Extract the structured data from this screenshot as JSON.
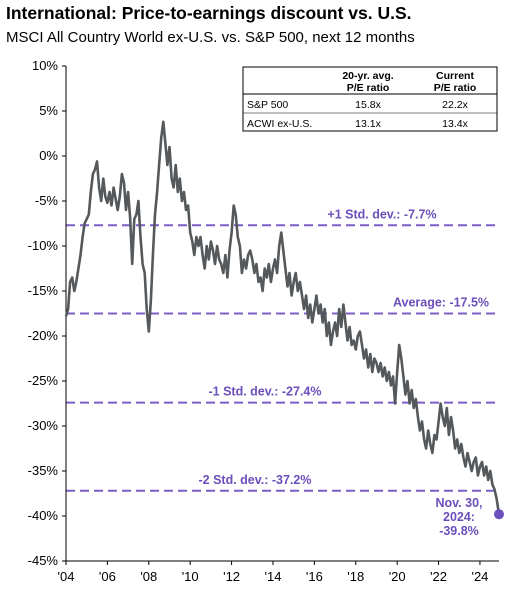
{
  "header": {
    "title": "International: Price-to-earnings discount vs. U.S.",
    "subtitle": "MSCI All Country World ex-U.S. vs. S&P 500, next 12 months"
  },
  "colors": {
    "line": "#55595c",
    "reference": "#7d5cc6",
    "annotation": "#6b4fbb",
    "axis": "#000000"
  },
  "table": {
    "headers": [
      [
        "20-yr. avg.",
        "P/E ratio"
      ],
      [
        "Current",
        "P/E ratio"
      ]
    ],
    "rows": [
      {
        "label": "S&P 500",
        "avg": "15.8x",
        "current": "22.2x"
      },
      {
        "label": "ACWI ex-U.S.",
        "avg": "13.1x",
        "current": "13.4x"
      }
    ]
  },
  "chart_data": {
    "type": "line",
    "ylim": [
      -45,
      10
    ],
    "xlim": [
      2004,
      2024.92
    ],
    "y_ticks": [
      "10%",
      "5%",
      "0%",
      "-5%",
      "-10%",
      "-15%",
      "-20%",
      "-25%",
      "-30%",
      "-35%",
      "-40%",
      "-45%"
    ],
    "x_ticks": [
      {
        "label": "'04",
        "value": 2004
      },
      {
        "label": "'06",
        "value": 2006
      },
      {
        "label": "'08",
        "value": 2008
      },
      {
        "label": "'10",
        "value": 2010
      },
      {
        "label": "'12",
        "value": 2012
      },
      {
        "label": "'14",
        "value": 2014
      },
      {
        "label": "'16",
        "value": 2016
      },
      {
        "label": "'18",
        "value": 2018
      },
      {
        "label": "'20",
        "value": 2020
      },
      {
        "label": "'22",
        "value": 2022
      },
      {
        "label": "'24",
        "value": 2024
      }
    ],
    "reference_lines": [
      {
        "label": "+1 Std. dev.: -7.7%",
        "value": -7.7
      },
      {
        "label": "Average: -17.5%",
        "value": -17.5
      },
      {
        "label": "-1 Std. dev.: -27.4%",
        "value": -27.4
      },
      {
        "label": "-2 Std. dev.: -37.2%",
        "value": -37.2
      }
    ],
    "end_point": {
      "x": 2024.92,
      "y": -39.8,
      "label_lines": [
        "Nov. 30,",
        "2024:",
        "-39.8%"
      ]
    },
    "series": [
      {
        "points": [
          [
            2004.0,
            -17.8
          ],
          [
            2004.1,
            -17.0
          ],
          [
            2004.2,
            -14.0
          ],
          [
            2004.3,
            -13.5
          ],
          [
            2004.4,
            -15.0
          ],
          [
            2004.5,
            -14.0
          ],
          [
            2004.6,
            -12.5
          ],
          [
            2004.7,
            -11.0
          ],
          [
            2004.8,
            -9.0
          ],
          [
            2004.9,
            -7.5
          ],
          [
            2005.0,
            -7.0
          ],
          [
            2005.1,
            -6.5
          ],
          [
            2005.2,
            -4.0
          ],
          [
            2005.3,
            -2.0
          ],
          [
            2005.4,
            -1.5
          ],
          [
            2005.5,
            -0.6
          ],
          [
            2005.6,
            -3.5
          ],
          [
            2005.7,
            -5.0
          ],
          [
            2005.8,
            -2.5
          ],
          [
            2005.9,
            -4.5
          ],
          [
            2006.0,
            -5.2
          ],
          [
            2006.1,
            -4.0
          ],
          [
            2006.2,
            -5.5
          ],
          [
            2006.3,
            -3.5
          ],
          [
            2006.4,
            -4.8
          ],
          [
            2006.5,
            -6.0
          ],
          [
            2006.6,
            -4.5
          ],
          [
            2006.7,
            -2.0
          ],
          [
            2006.8,
            -3.0
          ],
          [
            2006.9,
            -6.0
          ],
          [
            2007.0,
            -4.0
          ],
          [
            2007.1,
            -7.0
          ],
          [
            2007.2,
            -12.0
          ],
          [
            2007.3,
            -7.0
          ],
          [
            2007.4,
            -6.5
          ],
          [
            2007.5,
            -5.0
          ],
          [
            2007.6,
            -9.0
          ],
          [
            2007.7,
            -12.0
          ],
          [
            2007.8,
            -13.0
          ],
          [
            2007.9,
            -17.0
          ],
          [
            2008.0,
            -19.5
          ],
          [
            2008.1,
            -16.0
          ],
          [
            2008.2,
            -11.0
          ],
          [
            2008.3,
            -6.5
          ],
          [
            2008.4,
            -4.0
          ],
          [
            2008.5,
            -1.0
          ],
          [
            2008.6,
            2.0
          ],
          [
            2008.7,
            3.8
          ],
          [
            2008.8,
            1.5
          ],
          [
            2008.9,
            -1.0
          ],
          [
            2009.0,
            1.0
          ],
          [
            2009.1,
            -2.5
          ],
          [
            2009.2,
            -3.5
          ],
          [
            2009.3,
            -1.0
          ],
          [
            2009.4,
            -4.0
          ],
          [
            2009.5,
            -2.5
          ],
          [
            2009.6,
            -5.0
          ],
          [
            2009.7,
            -4.0
          ],
          [
            2009.8,
            -6.0
          ],
          [
            2009.9,
            -5.5
          ],
          [
            2010.0,
            -8.5
          ],
          [
            2010.1,
            -9.5
          ],
          [
            2010.2,
            -11.0
          ],
          [
            2010.3,
            -9.0
          ],
          [
            2010.4,
            -10.0
          ],
          [
            2010.5,
            -9.0
          ],
          [
            2010.6,
            -11.0
          ],
          [
            2010.7,
            -12.5
          ],
          [
            2010.8,
            -10.0
          ],
          [
            2010.9,
            -11.5
          ],
          [
            2011.0,
            -9.5
          ],
          [
            2011.1,
            -10.5
          ],
          [
            2011.2,
            -12.0
          ],
          [
            2011.3,
            -10.0
          ],
          [
            2011.4,
            -11.5
          ],
          [
            2011.5,
            -12.0
          ],
          [
            2011.6,
            -13.0
          ],
          [
            2011.7,
            -11.0
          ],
          [
            2011.8,
            -13.5
          ],
          [
            2011.9,
            -10.5
          ],
          [
            2012.0,
            -8.5
          ],
          [
            2012.1,
            -5.5
          ],
          [
            2012.2,
            -6.5
          ],
          [
            2012.3,
            -9.0
          ],
          [
            2012.4,
            -10.0
          ],
          [
            2012.5,
            -13.0
          ],
          [
            2012.6,
            -11.5
          ],
          [
            2012.7,
            -12.5
          ],
          [
            2012.8,
            -11.0
          ],
          [
            2012.9,
            -10.5
          ],
          [
            2013.0,
            -11.5
          ],
          [
            2013.1,
            -13.0
          ],
          [
            2013.2,
            -12.0
          ],
          [
            2013.3,
            -14.0
          ],
          [
            2013.4,
            -13.5
          ],
          [
            2013.5,
            -15.0
          ],
          [
            2013.6,
            -12.5
          ],
          [
            2013.7,
            -13.5
          ],
          [
            2013.8,
            -12.0
          ],
          [
            2013.9,
            -14.0
          ],
          [
            2014.0,
            -12.5
          ],
          [
            2014.1,
            -11.5
          ],
          [
            2014.2,
            -13.0
          ],
          [
            2014.3,
            -10.0
          ],
          [
            2014.4,
            -8.5
          ],
          [
            2014.5,
            -10.5
          ],
          [
            2014.6,
            -12.5
          ],
          [
            2014.7,
            -14.5
          ],
          [
            2014.8,
            -13.0
          ],
          [
            2014.9,
            -15.5
          ],
          [
            2015.0,
            -14.0
          ],
          [
            2015.1,
            -13.0
          ],
          [
            2015.2,
            -15.0
          ],
          [
            2015.3,
            -14.0
          ],
          [
            2015.4,
            -15.5
          ],
          [
            2015.5,
            -17.0
          ],
          [
            2015.6,
            -15.5
          ],
          [
            2015.7,
            -18.0
          ],
          [
            2015.8,
            -16.5
          ],
          [
            2015.9,
            -18.5
          ],
          [
            2016.0,
            -17.0
          ],
          [
            2016.1,
            -15.5
          ],
          [
            2016.2,
            -17.5
          ],
          [
            2016.3,
            -16.5
          ],
          [
            2016.4,
            -18.5
          ],
          [
            2016.5,
            -17.0
          ],
          [
            2016.6,
            -20.0
          ],
          [
            2016.7,
            -18.5
          ],
          [
            2016.8,
            -21.0
          ],
          [
            2016.9,
            -19.5
          ],
          [
            2017.0,
            -18.5
          ],
          [
            2017.1,
            -20.0
          ],
          [
            2017.2,
            -17.0
          ],
          [
            2017.3,
            -19.0
          ],
          [
            2017.4,
            -16.5
          ],
          [
            2017.5,
            -18.5
          ],
          [
            2017.6,
            -20.5
          ],
          [
            2017.7,
            -19.0
          ],
          [
            2017.8,
            -21.0
          ],
          [
            2017.9,
            -20.5
          ],
          [
            2018.0,
            -21.5
          ],
          [
            2018.1,
            -20.0
          ],
          [
            2018.2,
            -19.5
          ],
          [
            2018.3,
            -21.0
          ],
          [
            2018.4,
            -22.5
          ],
          [
            2018.5,
            -21.5
          ],
          [
            2018.6,
            -23.5
          ],
          [
            2018.7,
            -22.0
          ],
          [
            2018.8,
            -24.0
          ],
          [
            2018.9,
            -22.5
          ],
          [
            2019.0,
            -23.0
          ],
          [
            2019.1,
            -24.0
          ],
          [
            2019.2,
            -23.0
          ],
          [
            2019.3,
            -24.5
          ],
          [
            2019.4,
            -23.5
          ],
          [
            2019.5,
            -25.0
          ],
          [
            2019.6,
            -24.0
          ],
          [
            2019.7,
            -25.5
          ],
          [
            2019.8,
            -24.5
          ],
          [
            2019.9,
            -27.5
          ],
          [
            2020.0,
            -24.0
          ],
          [
            2020.1,
            -21.0
          ],
          [
            2020.2,
            -22.5
          ],
          [
            2020.3,
            -24.5
          ],
          [
            2020.4,
            -26.5
          ],
          [
            2020.5,
            -25.0
          ],
          [
            2020.6,
            -27.5
          ],
          [
            2020.7,
            -26.0
          ],
          [
            2020.8,
            -28.0
          ],
          [
            2020.9,
            -27.0
          ],
          [
            2021.0,
            -29.0
          ],
          [
            2021.1,
            -30.5
          ],
          [
            2021.2,
            -29.5
          ],
          [
            2021.3,
            -31.5
          ],
          [
            2021.4,
            -32.5
          ],
          [
            2021.5,
            -30.5
          ],
          [
            2021.6,
            -32.0
          ],
          [
            2021.7,
            -33.0
          ],
          [
            2021.8,
            -31.0
          ],
          [
            2021.9,
            -31.5
          ],
          [
            2022.0,
            -29.5
          ],
          [
            2022.1,
            -27.5
          ],
          [
            2022.2,
            -29.0
          ],
          [
            2022.3,
            -30.0
          ],
          [
            2022.4,
            -28.0
          ],
          [
            2022.5,
            -31.0
          ],
          [
            2022.6,
            -29.0
          ],
          [
            2022.7,
            -30.5
          ],
          [
            2022.8,
            -32.5
          ],
          [
            2022.9,
            -31.5
          ],
          [
            2023.0,
            -33.0
          ],
          [
            2023.1,
            -32.0
          ],
          [
            2023.2,
            -33.5
          ],
          [
            2023.3,
            -34.5
          ],
          [
            2023.4,
            -33.0
          ],
          [
            2023.5,
            -34.0
          ],
          [
            2023.6,
            -35.0
          ],
          [
            2023.7,
            -34.0
          ],
          [
            2023.8,
            -33.5
          ],
          [
            2023.9,
            -35.5
          ],
          [
            2024.0,
            -34.5
          ],
          [
            2024.1,
            -34.0
          ],
          [
            2024.2,
            -35.5
          ],
          [
            2024.3,
            -34.5
          ],
          [
            2024.4,
            -36.0
          ],
          [
            2024.5,
            -35.0
          ],
          [
            2024.6,
            -36.5
          ],
          [
            2024.7,
            -37.0
          ],
          [
            2024.8,
            -38.0
          ],
          [
            2024.92,
            -39.8
          ]
        ]
      }
    ]
  }
}
